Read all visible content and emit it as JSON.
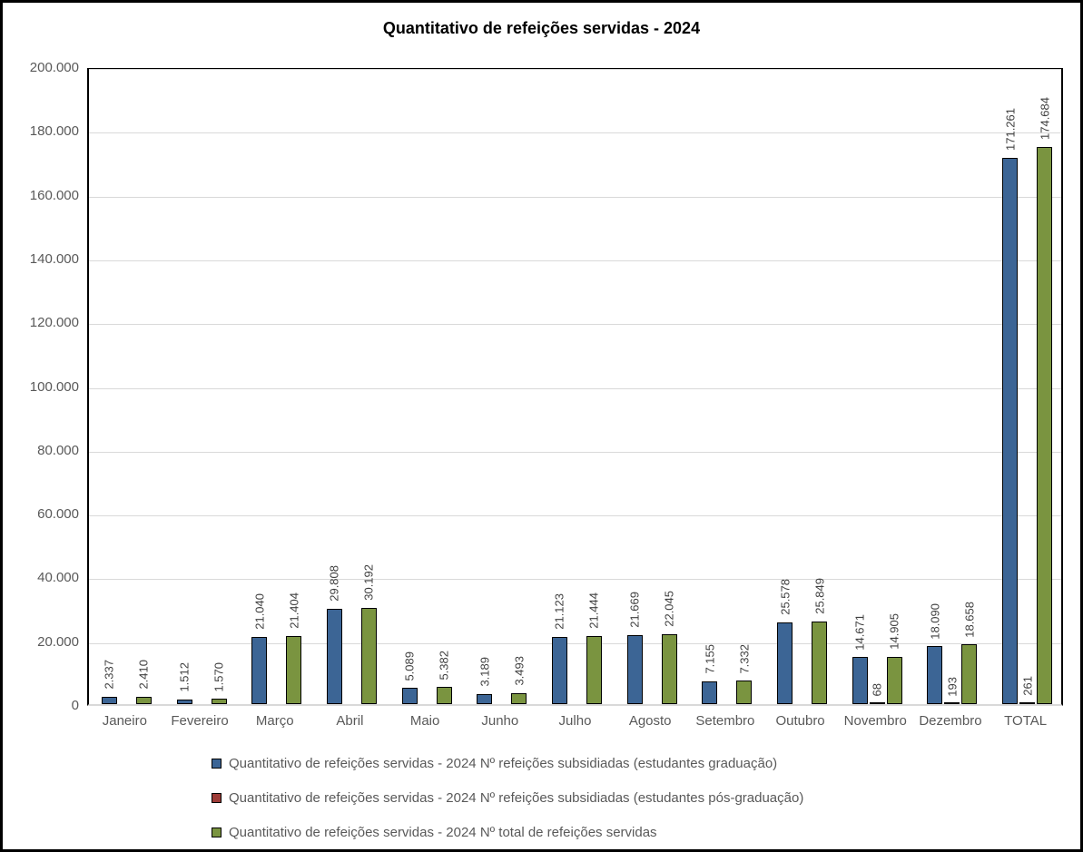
{
  "chart_data": {
    "type": "bar",
    "title": "Quantitativo de refeições servidas - 2024",
    "categories": [
      "Janeiro",
      "Fevereiro",
      "Março",
      "Abril",
      "Maio",
      "Junho",
      "Julho",
      "Agosto",
      "Setembro",
      "Outubro",
      "Novembro",
      "Dezembro",
      "TOTAL"
    ],
    "series": [
      {
        "name": "Quantitativo de refeições servidas - 2024 Nº refeições subsidiadas (estudantes graduação)",
        "color": "#3c6595",
        "values": [
          2337,
          1512,
          21040,
          29808,
          5089,
          3189,
          21123,
          21669,
          7155,
          25578,
          14671,
          18090,
          171261
        ],
        "labels": [
          "2.337",
          "1.512",
          "21.040",
          "29.808",
          "5.089",
          "3.189",
          "21.123",
          "21.669",
          "7.155",
          "25.578",
          "14.671",
          "18.090",
          "171.261"
        ]
      },
      {
        "name": "Quantitativo de refeições servidas - 2024 Nº refeições subsidiadas (estudantes pós-graduação)",
        "color": "#9e3c38",
        "values": [
          0,
          0,
          0,
          0,
          0,
          0,
          0,
          0,
          0,
          0,
          68,
          193,
          261
        ],
        "labels": [
          "",
          "",
          "",
          "",
          "",
          "",
          "",
          "",
          "",
          "",
          "68",
          "193",
          "261"
        ]
      },
      {
        "name": "Quantitativo de refeições servidas - 2024 Nº total de refeições servidas",
        "color": "#7a9440",
        "values": [
          2410,
          1570,
          21404,
          30192,
          5382,
          3493,
          21444,
          22045,
          7332,
          25849,
          14905,
          18658,
          174684
        ],
        "labels": [
          "2.410",
          "1.570",
          "21.404",
          "30.192",
          "5.382",
          "3.493",
          "21.444",
          "22.045",
          "7.332",
          "25.849",
          "14.905",
          "18.658",
          "174.684"
        ]
      }
    ],
    "ylim": [
      0,
      200000
    ],
    "ytick_step": 20000,
    "yticks": [
      "0",
      "20.000",
      "40.000",
      "60.000",
      "80.000",
      "100.000",
      "120.000",
      "140.000",
      "160.000",
      "180.000",
      "200.000"
    ],
    "grid": true,
    "legend_position": "bottom"
  },
  "style_colors": {
    "grid": "#d9d9d9",
    "axis_text": "#595959",
    "data_label_text": "#3f3f3f",
    "bar_outline": "#000000",
    "frame_border": "#000000"
  }
}
